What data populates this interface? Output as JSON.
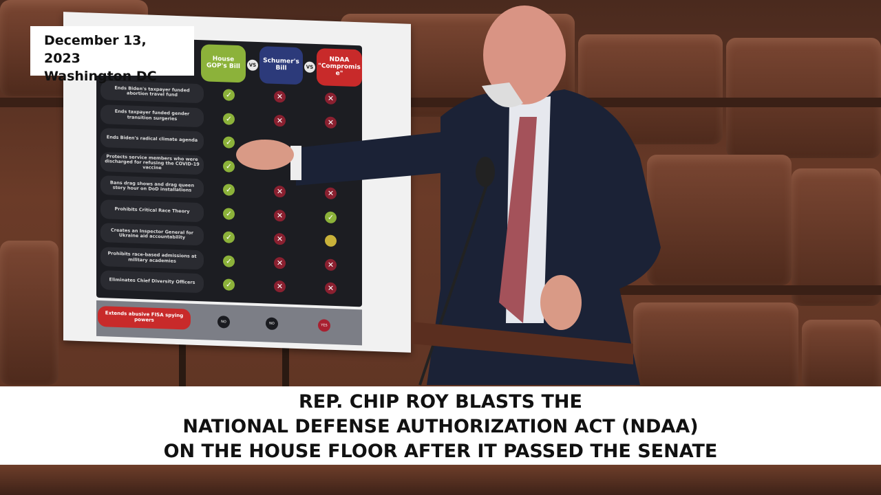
{
  "overlay": {
    "date": "December 13, 2023",
    "location": "Washington DC"
  },
  "caption": {
    "lines": [
      "REP. CHIP ROY BLASTS THE",
      "NATIONAL DEFENSE AUTHORIZATION ACT (NDAA)",
      "ON THE HOUSE FLOOR AFTER IT PASSED THE SENATE"
    ]
  },
  "poster": {
    "columns": [
      {
        "label": "House GOP's Bill",
        "color": "#8cb23a"
      },
      {
        "label": "Schumer's Bill",
        "color": "#2c3a7a"
      },
      {
        "label": "NDAA \"Compromise\"",
        "color": "#c82a2a"
      }
    ],
    "vs": "VS",
    "rows": [
      {
        "label": "Ends Biden's taxpayer funded abortion travel fund",
        "marks": [
          "check",
          "x",
          "x"
        ]
      },
      {
        "label": "Ends taxpayer funded gender transition surgeries",
        "marks": [
          "check",
          "x",
          "x"
        ]
      },
      {
        "label": "Ends Biden's radical climate agenda",
        "marks": [
          "check",
          null,
          null
        ]
      },
      {
        "label": "Protects service members who were discharged for refusing the COVID-19 vaccine",
        "marks": [
          "check",
          null,
          null
        ]
      },
      {
        "label": "Bans drag shows and drag queen story hour on DoD installations",
        "marks": [
          "check",
          "x",
          "x"
        ]
      },
      {
        "label": "Prohibits Critical Race Theory",
        "marks": [
          "check",
          "x",
          "check"
        ]
      },
      {
        "label": "Creates an Inspector General for Ukraine aid accountability",
        "marks": [
          "check",
          "x",
          "partial"
        ]
      },
      {
        "label": "Prohibits race-based admissions at military academies",
        "marks": [
          "check",
          "x",
          "x"
        ]
      },
      {
        "label": "Eliminates Chief Diversity Officers",
        "marks": [
          "check",
          "x",
          "x"
        ]
      }
    ],
    "fisa": {
      "label": "Extends abusive FISA spying powers",
      "answers": [
        "NO",
        "NO",
        "YES"
      ]
    }
  }
}
